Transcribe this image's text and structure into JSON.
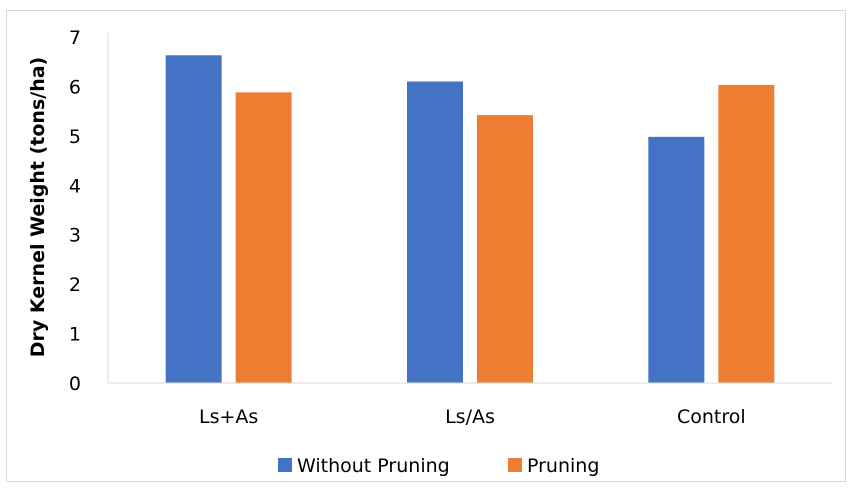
{
  "chart_data": {
    "type": "bar",
    "categories": [
      "Ls+As",
      "Ls/As",
      "Control"
    ],
    "series": [
      {
        "name": "Without Pruning",
        "color": "#4472c4",
        "values": [
          6.63,
          6.1,
          4.98
        ]
      },
      {
        "name": "Pruning",
        "color": "#ed7d31",
        "values": [
          5.88,
          5.42,
          6.03
        ]
      }
    ],
    "ylabel": "Dry Kernel Weight  (tons/ha)",
    "xlabel": "",
    "ylim": [
      0,
      7
    ],
    "yticks": [
      "0",
      "1",
      "2",
      "3",
      "4",
      "5",
      "6",
      "7"
    ],
    "grid": false,
    "legend_position": "bottom"
  }
}
